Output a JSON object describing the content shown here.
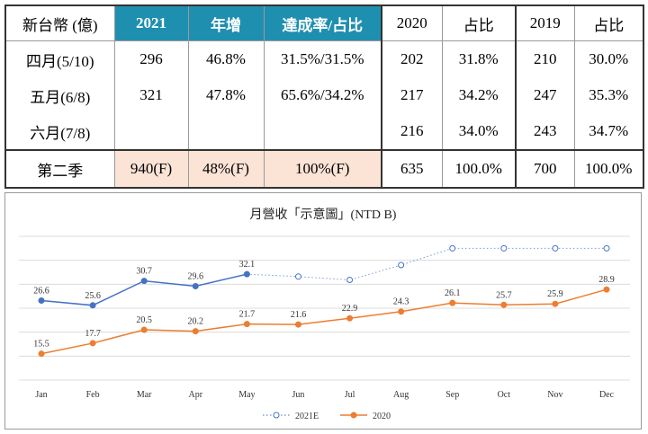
{
  "table": {
    "headers": [
      "新台幣 (億)",
      "2021",
      "年增",
      "達成率/占比",
      "2020",
      "占比",
      "2019",
      "占比"
    ],
    "rows": [
      [
        "四月(5/10)",
        "296",
        "46.8%",
        "31.5%/31.5%",
        "202",
        "31.8%",
        "210",
        "30.0%"
      ],
      [
        "五月(6/8)",
        "321",
        "47.8%",
        "65.6%/34.2%",
        "217",
        "34.2%",
        "247",
        "35.3%"
      ],
      [
        "六月(7/8)",
        "",
        "",
        "",
        "216",
        "34.0%",
        "243",
        "34.7%"
      ],
      [
        "第二季",
        "940(F)",
        "48%(F)",
        "100%(F)",
        "635",
        "100.0%",
        "700",
        "100.0%"
      ]
    ],
    "header_color": "#1f8fb0",
    "q2_highlight_color": "#fbe3d5"
  },
  "chart_data": {
    "type": "line",
    "title": "月營收「示意圖」(NTD B)",
    "categories": [
      "Jan",
      "Feb",
      "Mar",
      "Apr",
      "May",
      "Jun",
      "Jul",
      "Aug",
      "Sep",
      "Oct",
      "Nov",
      "Dec"
    ],
    "ylim": [
      10,
      40
    ],
    "grid": true,
    "legend_position": "bottom",
    "series": [
      {
        "name": "2021E",
        "color": "#4472c4",
        "values": [
          26.6,
          25.6,
          30.7,
          29.6,
          32.1,
          31.6,
          30.9,
          34.0,
          37.5,
          37.5,
          37.5,
          37.5
        ],
        "labels": [
          "26.6",
          "25.6",
          "30.7",
          "29.6",
          "32.1",
          "",
          "",
          "",
          "",
          "",
          "",
          ""
        ],
        "solid_until_index": 4
      },
      {
        "name": "2020",
        "color": "#ed7d31",
        "values": [
          15.5,
          17.7,
          20.5,
          20.2,
          21.7,
          21.6,
          22.9,
          24.3,
          26.1,
          25.7,
          25.9,
          28.9
        ],
        "labels": [
          "15.5",
          "17.7",
          "20.5",
          "20.2",
          "21.7",
          "21.6",
          "22.9",
          "24.3",
          "26.1",
          "25.7",
          "25.9",
          "28.9"
        ]
      }
    ]
  }
}
